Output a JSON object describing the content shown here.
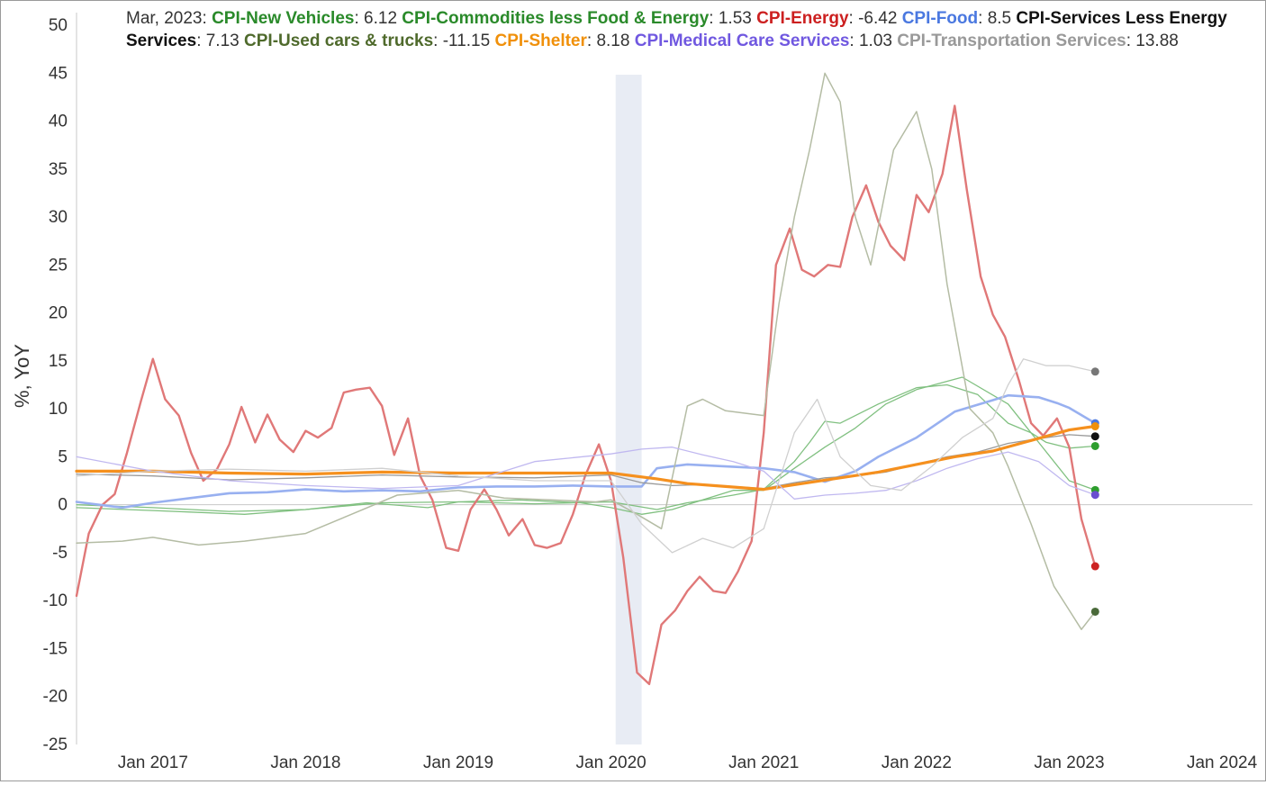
{
  "chart_data": {
    "type": "line",
    "ylabel": "%, YoY",
    "ylim": [
      -25,
      50
    ],
    "yticks": [
      50,
      45,
      40,
      35,
      30,
      25,
      20,
      15,
      10,
      5,
      0,
      -5,
      -10,
      -15,
      -20,
      -25
    ],
    "xlim": [
      2016.5,
      2024.2
    ],
    "xticks": [
      {
        "label": "Jan 2017",
        "x": 2017
      },
      {
        "label": "Jan 2018",
        "x": 2018
      },
      {
        "label": "Jan 2019",
        "x": 2019
      },
      {
        "label": "Jan 2020",
        "x": 2020
      },
      {
        "label": "Jan 2021",
        "x": 2021
      },
      {
        "label": "Jan 2022",
        "x": 2022
      },
      {
        "label": "Jan 2023",
        "x": 2023
      },
      {
        "label": "Jan 2024",
        "x": 2024
      }
    ],
    "recession": {
      "start": 2020.03,
      "end": 2020.2,
      "color": "#e8ecf4"
    },
    "zero_line": true,
    "legend_date": "Mar, 2023",
    "series": [
      {
        "name": "CPI-New Vehicles",
        "legend_value": "6.12",
        "color": "#80c080",
        "name_color": "#2a8a2a",
        "dot_color": "#2e9e2e",
        "width": 1.3,
        "x": [
          2016.5,
          2017,
          2017.5,
          2018,
          2018.5,
          2019,
          2019.5,
          2020,
          2020.3,
          2020.5,
          2020.8,
          2021,
          2021.2,
          2021.3,
          2021.4,
          2021.5,
          2021.75,
          2022,
          2022.2,
          2022.4,
          2022.6,
          2022.75,
          2022.85,
          2023,
          2023.17
        ],
        "y": [
          0,
          -0.3,
          -0.7,
          -0.5,
          0.2,
          0.3,
          0.1,
          0.3,
          -0.5,
          0.2,
          1.0,
          1.6,
          4.5,
          6.5,
          8.7,
          8.5,
          10.5,
          12.2,
          12.5,
          11.5,
          8.5,
          7.5,
          6.5,
          5.9,
          6.12
        ]
      },
      {
        "name": "CPI-Commodities less Food & Energy",
        "legend_value": "1.53",
        "color": "#80c080",
        "name_color": "#2a8a2a",
        "dot_color": "#2e9e2e",
        "width": 1.3,
        "x": [
          2016.5,
          2017,
          2017.3,
          2017.6,
          2018,
          2018.4,
          2018.8,
          2019,
          2019.4,
          2019.8,
          2020,
          2020.2,
          2020.4,
          2020.6,
          2020.8,
          2021,
          2021.2,
          2021.4,
          2021.6,
          2021.8,
          2022,
          2022.3,
          2022.6,
          2022.8,
          2023,
          2023.17
        ],
        "y": [
          -0.3,
          -0.6,
          -0.8,
          -1.0,
          -0.5,
          0.2,
          -0.3,
          0.3,
          0.5,
          0.2,
          -0.3,
          -1.0,
          -0.5,
          0.5,
          1.5,
          1.5,
          3.8,
          6.0,
          8.0,
          10.5,
          12.0,
          13.3,
          10.5,
          6.5,
          2.5,
          1.53
        ]
      },
      {
        "name": "CPI-Energy",
        "legend_value": "-6.42",
        "color": "#e07878",
        "name_color": "#cc2020",
        "dot_color": "#cc2222",
        "width": 2.4,
        "x": [
          2016.5,
          2016.58,
          2016.67,
          2016.75,
          2016.83,
          2016.92,
          2017,
          2017.08,
          2017.17,
          2017.25,
          2017.33,
          2017.42,
          2017.5,
          2017.58,
          2017.67,
          2017.75,
          2017.83,
          2017.92,
          2018,
          2018.08,
          2018.17,
          2018.25,
          2018.33,
          2018.42,
          2018.5,
          2018.58,
          2018.67,
          2018.75,
          2018.83,
          2018.92,
          2019,
          2019.08,
          2019.17,
          2019.25,
          2019.33,
          2019.42,
          2019.5,
          2019.58,
          2019.67,
          2019.75,
          2019.83,
          2019.92,
          2020,
          2020.08,
          2020.17,
          2020.25,
          2020.33,
          2020.42,
          2020.5,
          2020.58,
          2020.67,
          2020.75,
          2020.83,
          2020.92,
          2021,
          2021.08,
          2021.17,
          2021.25,
          2021.33,
          2021.42,
          2021.5,
          2021.58,
          2021.67,
          2021.75,
          2021.83,
          2021.92,
          2022,
          2022.08,
          2022.17,
          2022.25,
          2022.33,
          2022.42,
          2022.5,
          2022.58,
          2022.67,
          2022.75,
          2022.83,
          2022.92,
          2023,
          2023.08,
          2023.17
        ],
        "y": [
          -9.5,
          -3,
          0,
          1.1,
          5.4,
          10.7,
          15.2,
          11,
          9.3,
          5.4,
          2.5,
          3.7,
          6.3,
          10.2,
          6.5,
          9.4,
          6.8,
          5.5,
          7.7,
          7.0,
          8.0,
          11.7,
          12.0,
          12.2,
          10.3,
          5.2,
          9.0,
          3.0,
          0.5,
          -4.5,
          -4.8,
          -0.5,
          1.6,
          -0.5,
          -3.2,
          -1.5,
          -4.2,
          -4.5,
          -4.0,
          -1.0,
          3.0,
          6.3,
          2.5,
          -5.5,
          -17.5,
          -18.7,
          -12.5,
          -11.0,
          -9.0,
          -7.5,
          -9.0,
          -9.2,
          -7.0,
          -3.8,
          7.5,
          25.0,
          28.8,
          24.5,
          23.8,
          25.0,
          24.8,
          30.0,
          33.3,
          29.5,
          27.0,
          25.5,
          32.3,
          30.5,
          34.5,
          41.6,
          32.8,
          23.8,
          19.8,
          17.5,
          13.0,
          8.5,
          7.2,
          9.0,
          6.0,
          -1.5,
          -6.42
        ]
      },
      {
        "name": "CPI-Food",
        "legend_value": "8.5",
        "color": "#98b0f0",
        "name_color": "#4a78e0",
        "dot_color": "#4a78e0",
        "width": 2.6,
        "x": [
          2016.5,
          2016.8,
          2017,
          2017.25,
          2017.5,
          2017.75,
          2018,
          2018.25,
          2018.5,
          2018.75,
          2019,
          2019.25,
          2019.5,
          2019.75,
          2020,
          2020.1,
          2020.2,
          2020.3,
          2020.5,
          2020.75,
          2021,
          2021.2,
          2021.4,
          2021.6,
          2021.75,
          2022,
          2022.25,
          2022.5,
          2022.6,
          2022.8,
          2022.92,
          2023,
          2023.17
        ],
        "y": [
          0.3,
          -0.3,
          0.2,
          0.7,
          1.2,
          1.3,
          1.6,
          1.4,
          1.5,
          1.4,
          1.8,
          1.9,
          1.9,
          2.0,
          1.9,
          1.9,
          1.9,
          3.8,
          4.2,
          4.0,
          3.8,
          3.4,
          2.4,
          3.5,
          5.0,
          7.0,
          9.7,
          10.9,
          11.4,
          11.2,
          10.6,
          10.1,
          8.5
        ]
      },
      {
        "name": "CPI-Services Less Energy Services",
        "legend_value": "7.13",
        "color": "#999999",
        "name_color": "#111111",
        "dot_color": "#111111",
        "width": 1.3,
        "x": [
          2016.5,
          2017,
          2017.5,
          2018,
          2018.5,
          2019,
          2019.5,
          2020,
          2020.2,
          2020.4,
          2020.6,
          2020.8,
          2021,
          2021.2,
          2021.4,
          2021.6,
          2021.8,
          2022,
          2022.2,
          2022.4,
          2022.6,
          2022.8,
          2023,
          2023.17
        ],
        "y": [
          3.2,
          3.0,
          2.6,
          2.8,
          3.1,
          2.9,
          2.8,
          3.1,
          2.3,
          2.0,
          2.1,
          1.9,
          1.7,
          2.3,
          2.8,
          3.0,
          3.4,
          4.2,
          5.0,
          5.5,
          6.4,
          6.9,
          7.3,
          7.13
        ]
      },
      {
        "name": "CPI-Used cars & trucks",
        "legend_value": "-11.15",
        "color": "#b4bca4",
        "name_color": "#4f6a2c",
        "dot_color": "#4a6a3a",
        "width": 1.5,
        "x": [
          2016.5,
          2016.8,
          2017,
          2017.3,
          2017.6,
          2018,
          2018.3,
          2018.6,
          2019,
          2019.3,
          2019.6,
          2019.9,
          2020,
          2020.17,
          2020.33,
          2020.5,
          2020.6,
          2020.75,
          2020.9,
          2021,
          2021.1,
          2021.2,
          2021.3,
          2021.4,
          2021.5,
          2021.6,
          2021.7,
          2021.85,
          2022,
          2022.1,
          2022.2,
          2022.35,
          2022.5,
          2022.6,
          2022.75,
          2022.9,
          2023,
          2023.08,
          2023.17
        ],
        "y": [
          -4.0,
          -3.8,
          -3.4,
          -4.2,
          -3.8,
          -3.0,
          -1.0,
          1.0,
          1.5,
          0.7,
          0.5,
          0.3,
          0.5,
          -1.0,
          -2.5,
          10.3,
          11.0,
          9.8,
          9.5,
          9.3,
          21.0,
          30.0,
          37.0,
          45.0,
          42.0,
          30.0,
          25.0,
          37.0,
          41.0,
          35.0,
          23.0,
          10.0,
          7.5,
          4.0,
          -2.0,
          -8.5,
          -11.0,
          -13.0,
          -11.15
        ]
      },
      {
        "name": "CPI-Shelter",
        "legend_value": "8.18",
        "color": "#f5901e",
        "name_color": "#f0900a",
        "dot_color": "#f0900a",
        "width": 3.2,
        "x": [
          2016.5,
          2017,
          2017.5,
          2018,
          2018.5,
          2019,
          2019.5,
          2020,
          2020.3,
          2020.5,
          2020.75,
          2021,
          2021.25,
          2021.5,
          2021.75,
          2022,
          2022.25,
          2022.5,
          2022.75,
          2023,
          2023.17
        ],
        "y": [
          3.5,
          3.5,
          3.3,
          3.2,
          3.4,
          3.3,
          3.3,
          3.3,
          2.7,
          2.2,
          1.9,
          1.6,
          2.2,
          2.8,
          3.4,
          4.2,
          5.0,
          5.6,
          6.7,
          7.8,
          8.18
        ]
      },
      {
        "name": "CPI-Medical Care Services",
        "legend_value": "1.03",
        "color": "#c0b8f0",
        "name_color": "#7058e0",
        "dot_color": "#6a4ed0",
        "width": 1.3,
        "x": [
          2016.5,
          2017,
          2017.5,
          2018,
          2018.5,
          2019,
          2019.5,
          2020,
          2020.2,
          2020.4,
          2020.6,
          2020.8,
          2021,
          2021.2,
          2021.4,
          2021.6,
          2021.8,
          2022,
          2022.2,
          2022.4,
          2022.6,
          2022.8,
          2023,
          2023.17
        ],
        "y": [
          5.0,
          3.5,
          2.5,
          2.0,
          1.7,
          2.0,
          4.5,
          5.3,
          5.8,
          6.0,
          5.2,
          4.5,
          3.5,
          0.6,
          1.0,
          1.2,
          1.5,
          2.5,
          3.8,
          4.8,
          5.5,
          4.5,
          2.0,
          1.03
        ]
      },
      {
        "name": "CPI-Transportation Services",
        "legend_value": "13.88",
        "color": "#d0d0d0",
        "name_color": "#999999",
        "dot_color": "#777777",
        "width": 1.3,
        "x": [
          2016.5,
          2017,
          2017.5,
          2018,
          2018.5,
          2019,
          2019.5,
          2020,
          2020.2,
          2020.4,
          2020.6,
          2020.8,
          2021,
          2021.2,
          2021.35,
          2021.5,
          2021.7,
          2021.9,
          2022.1,
          2022.3,
          2022.5,
          2022.6,
          2022.7,
          2022.85,
          2023,
          2023.17
        ],
        "y": [
          3.0,
          3.5,
          3.7,
          3.5,
          3.8,
          3.0,
          2.5,
          2.5,
          -2.0,
          -5.0,
          -3.5,
          -4.5,
          -2.5,
          7.5,
          11.0,
          5.0,
          2.0,
          1.5,
          4.0,
          7.0,
          9.0,
          12.5,
          15.2,
          14.5,
          14.5,
          13.88
        ]
      }
    ]
  }
}
